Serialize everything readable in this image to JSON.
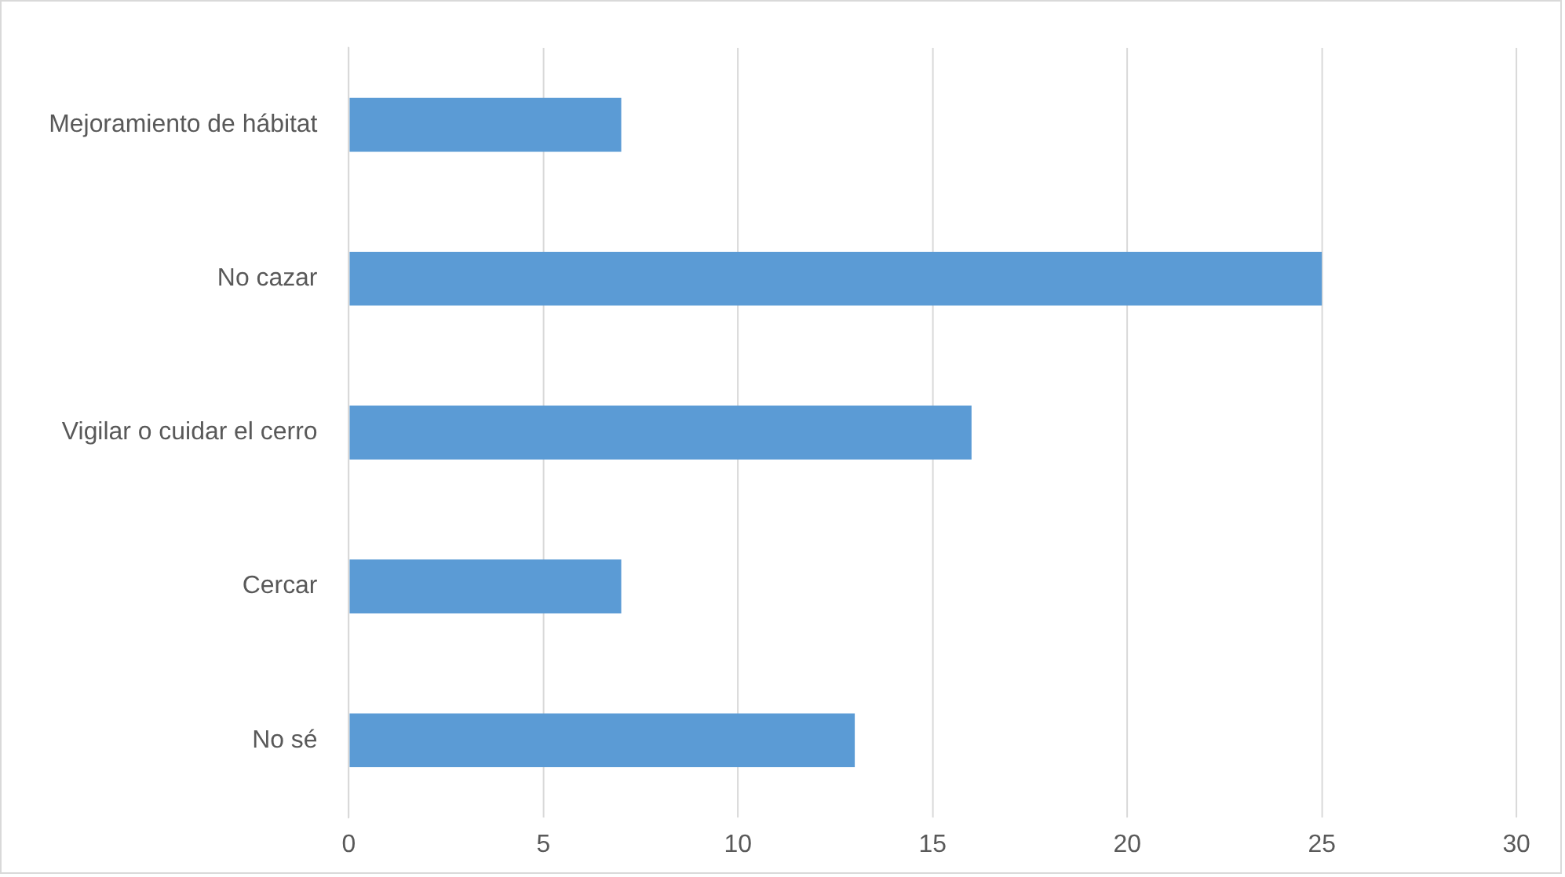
{
  "chart_data": {
    "type": "bar",
    "orientation": "horizontal",
    "categories": [
      "Mejoramiento de hábitat",
      "No cazar",
      "Vigilar o cuidar el cerro",
      "Cercar",
      "No sé"
    ],
    "values": [
      7,
      25,
      16,
      7,
      13
    ],
    "color": "#5b9bd5",
    "xlim": [
      0,
      30
    ],
    "xticks": [
      0,
      5,
      10,
      15,
      20,
      25,
      30
    ],
    "grid": "x"
  }
}
